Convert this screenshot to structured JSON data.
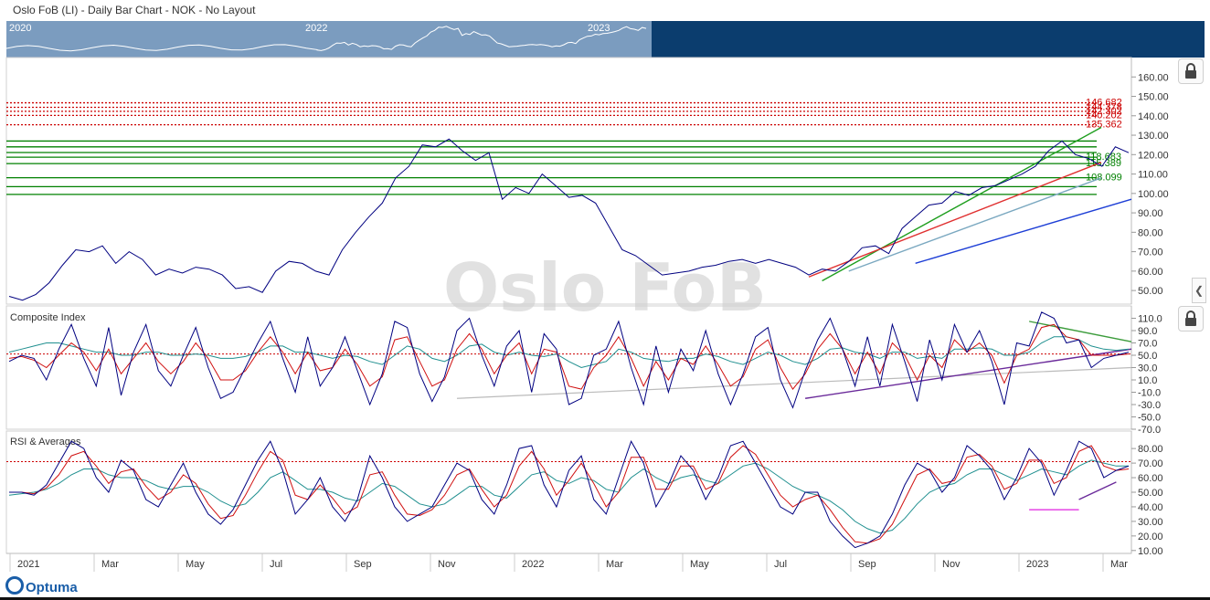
{
  "title": "Oslo FoB (LI) - Daily Bar Chart - NOK - No Layout",
  "watermark": "Oslo FoB",
  "logo": "Optuma",
  "navigator": {
    "years": [
      "2020",
      "2022",
      "2023"
    ]
  },
  "icons": {
    "lock": "lock-icon",
    "collapse": "chevron-left-icon"
  },
  "colors": {
    "price": "#000080",
    "resistance": "#cc0000",
    "support": "#008000",
    "watermark": "#e1e1e1",
    "navigator": "#0b3d6e"
  },
  "chart_data": [
    {
      "type": "line",
      "title": "",
      "ylabel": "",
      "ylim": [
        43,
        170
      ],
      "y_ticks": [
        "160.00",
        "150.00",
        "140.00",
        "130.00",
        "120.00",
        "110.00",
        "100.00",
        "90.00",
        "80.00",
        "70.00",
        "60.00",
        "50.00"
      ],
      "x_month_labels": [
        "2021",
        "Mar",
        "May",
        "Jul",
        "Sep",
        "Nov",
        "2022",
        "Mar",
        "May",
        "Jul",
        "Sep",
        "Nov",
        "2023",
        "Mar"
      ],
      "series": [
        {
          "values": [
            47,
            45,
            48,
            54,
            63,
            71,
            70,
            73,
            64,
            70,
            66,
            58,
            61,
            59,
            62,
            61,
            58,
            51,
            52,
            49,
            60,
            65,
            64,
            60,
            58,
            71,
            80,
            88,
            95,
            108,
            114,
            125,
            124,
            128,
            122,
            117,
            121,
            97,
            103,
            100,
            110,
            104,
            98,
            99,
            95,
            83,
            71,
            68,
            63,
            58,
            59,
            60,
            62,
            63,
            65,
            66,
            64,
            66,
            64,
            62,
            58,
            61,
            60,
            65,
            72,
            73,
            69,
            82,
            88,
            94,
            95,
            101,
            99,
            103,
            104,
            107,
            110,
            114,
            122,
            127,
            120,
            118,
            114,
            124,
            121
          ]
        }
      ],
      "levels_red": [
        146.682,
        144.378,
        142.302,
        140.202,
        135.362
      ],
      "level_labels_red": [
        "146.682",
        "144.378",
        "142.302",
        "140.202",
        "135.362"
      ],
      "levels_green": [
        127,
        124,
        121.083,
        118.683,
        115.389,
        108.099,
        103.5,
        99.5
      ],
      "level_labels_green": [
        "118.683",
        "115.389",
        "108.099"
      ]
    },
    {
      "type": "line",
      "title": "Composite Index",
      "ylim": [
        -70,
        130
      ],
      "y_ticks": [
        "110.0",
        "90.0",
        "70.0",
        "50.0",
        "30.0",
        "10.0",
        "-10.0",
        "-30.0",
        "-50.0",
        "-70.0"
      ],
      "reference_line": 52,
      "series": [
        {
          "values": [
            40,
            50,
            45,
            10,
            60,
            100,
            45,
            0,
            95,
            -15,
            55,
            100,
            25,
            0,
            50,
            95,
            30,
            -20,
            -10,
            30,
            70,
            105,
            45,
            -10,
            80,
            0,
            30,
            80,
            25,
            -30,
            20,
            105,
            95,
            20,
            -25,
            15,
            90,
            110,
            50,
            0,
            65,
            90,
            -10,
            85,
            60,
            -30,
            -20,
            50,
            60,
            105,
            30,
            -30,
            65,
            -10,
            60,
            25,
            90,
            20,
            -30,
            20,
            80,
            95,
            10,
            -35,
            25,
            75,
            110,
            60,
            0,
            80,
            0,
            100,
            40,
            -25,
            75,
            10,
            100,
            55,
            90,
            40,
            -30,
            70,
            65,
            120,
            110,
            70,
            75,
            30,
            45,
            50,
            55
          ]
        },
        {
          "values": [
            45,
            48,
            42,
            30,
            50,
            70,
            55,
            25,
            60,
            20,
            45,
            70,
            40,
            20,
            40,
            70,
            45,
            10,
            10,
            25,
            55,
            80,
            55,
            20,
            55,
            25,
            30,
            60,
            35,
            0,
            15,
            75,
            80,
            40,
            0,
            10,
            60,
            85,
            60,
            20,
            50,
            70,
            20,
            60,
            55,
            0,
            -5,
            30,
            50,
            80,
            45,
            0,
            40,
            10,
            45,
            35,
            65,
            35,
            0,
            15,
            60,
            75,
            30,
            -5,
            20,
            60,
            85,
            60,
            20,
            55,
            20,
            70,
            50,
            10,
            50,
            30,
            75,
            55,
            70,
            50,
            5,
            50,
            60,
            95,
            100,
            80,
            75,
            50,
            50,
            50,
            52
          ]
        },
        {
          "values": [
            55,
            60,
            65,
            70,
            70,
            65,
            60,
            55,
            55,
            50,
            50,
            55,
            55,
            50,
            50,
            52,
            50,
            45,
            45,
            48,
            55,
            65,
            65,
            55,
            55,
            50,
            45,
            50,
            48,
            40,
            35,
            50,
            65,
            60,
            45,
            40,
            50,
            65,
            68,
            55,
            50,
            55,
            50,
            48,
            52,
            40,
            30,
            35,
            40,
            60,
            55,
            45,
            42,
            40,
            45,
            45,
            52,
            48,
            40,
            35,
            45,
            55,
            50,
            40,
            35,
            45,
            60,
            62,
            55,
            52,
            45,
            55,
            55,
            45,
            48,
            45,
            60,
            60,
            62,
            60,
            50,
            50,
            55,
            70,
            80,
            80,
            75,
            65,
            60,
            58,
            60
          ]
        }
      ],
      "trendlines": {
        "grey": [
          [
            -20
          ],
          [
            30
          ]
        ],
        "purple": [
          [
            -20
          ],
          [
            60
          ]
        ],
        "green": [
          [
            105
          ],
          [
            70
          ]
        ]
      }
    },
    {
      "type": "line",
      "title": "RSI & Averages",
      "ylim": [
        8,
        92
      ],
      "y_ticks": [
        "80.00",
        "70.00",
        "60.00",
        "50.00",
        "40.00",
        "30.00",
        "20.00",
        "10.00"
      ],
      "reference_line": 71,
      "series": [
        {
          "values": [
            50,
            50,
            48,
            55,
            70,
            85,
            80,
            60,
            50,
            72,
            65,
            45,
            40,
            55,
            70,
            50,
            35,
            28,
            38,
            55,
            72,
            85,
            65,
            35,
            45,
            60,
            40,
            30,
            45,
            75,
            60,
            40,
            30,
            35,
            40,
            55,
            70,
            65,
            45,
            35,
            55,
            80,
            82,
            55,
            40,
            65,
            75,
            45,
            35,
            60,
            85,
            70,
            40,
            55,
            75,
            65,
            45,
            60,
            82,
            85,
            70,
            55,
            40,
            35,
            50,
            50,
            30,
            20,
            12,
            15,
            20,
            35,
            55,
            70,
            65,
            50,
            60,
            82,
            75,
            65,
            45,
            60,
            80,
            70,
            48,
            65,
            85,
            80,
            60,
            65,
            68
          ]
        },
        {
          "values": [
            50,
            50,
            49,
            53,
            62,
            75,
            78,
            68,
            56,
            64,
            66,
            54,
            45,
            50,
            62,
            56,
            42,
            32,
            34,
            48,
            64,
            78,
            72,
            48,
            45,
            55,
            46,
            35,
            40,
            62,
            64,
            48,
            35,
            34,
            38,
            48,
            62,
            66,
            52,
            40,
            48,
            68,
            78,
            66,
            48,
            58,
            70,
            56,
            40,
            50,
            74,
            74,
            52,
            52,
            68,
            68,
            52,
            56,
            74,
            82,
            76,
            62,
            48,
            40,
            45,
            48,
            38,
            26,
            16,
            15,
            18,
            28,
            45,
            62,
            66,
            56,
            58,
            74,
            76,
            68,
            52,
            56,
            72,
            72,
            56,
            60,
            78,
            82,
            68,
            65,
            66
          ]
        },
        {
          "values": [
            48,
            49,
            50,
            52,
            56,
            62,
            66,
            66,
            62,
            60,
            60,
            58,
            54,
            52,
            54,
            54,
            50,
            44,
            40,
            42,
            50,
            60,
            64,
            58,
            52,
            52,
            50,
            46,
            44,
            50,
            56,
            54,
            48,
            42,
            40,
            42,
            48,
            54,
            54,
            48,
            46,
            54,
            62,
            64,
            58,
            56,
            60,
            58,
            52,
            50,
            60,
            66,
            60,
            56,
            60,
            62,
            58,
            56,
            62,
            68,
            70,
            66,
            60,
            54,
            50,
            48,
            44,
            38,
            30,
            25,
            22,
            24,
            32,
            42,
            50,
            54,
            56,
            62,
            66,
            66,
            62,
            58,
            62,
            66,
            64,
            62,
            68,
            72,
            70,
            68,
            68
          ]
        }
      ]
    }
  ]
}
